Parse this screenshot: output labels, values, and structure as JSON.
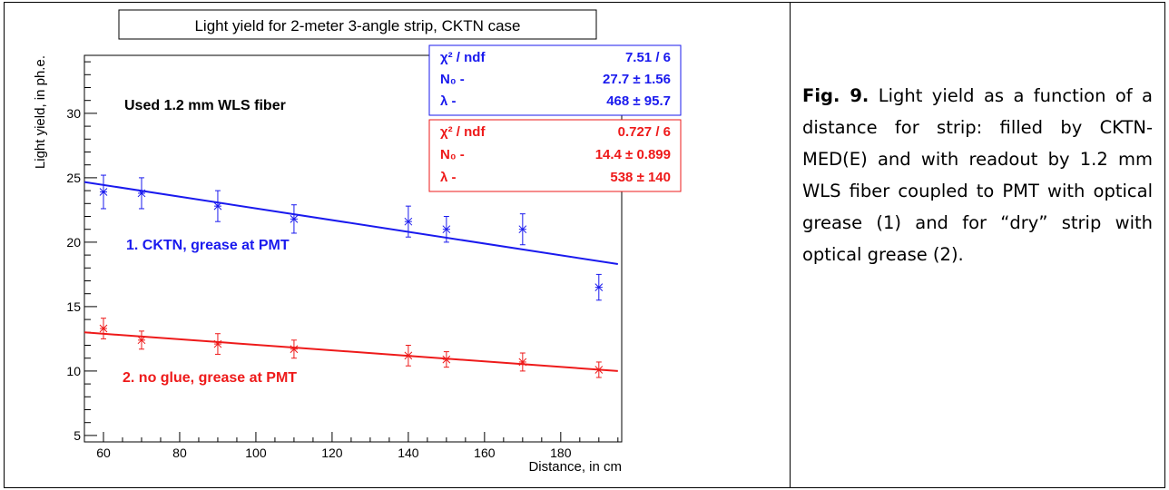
{
  "chart_data": {
    "type": "scatter",
    "title": "Light yield for 2-meter 3-angle strip, CKTN case",
    "xlabel": "Distance, in cm",
    "ylabel": "Light yield, in ph.e.",
    "xlim": [
      55,
      196
    ],
    "ylim": [
      4.5,
      34.5
    ],
    "xticks": [
      "60",
      "80",
      "100",
      "120",
      "140",
      "160",
      "180"
    ],
    "yticks": [
      "5",
      "10",
      "15",
      "20",
      "25",
      "30"
    ],
    "annotation": "Used 1.2 mm  WLS fiber",
    "series": [
      {
        "name": "1.  CKTN, grease at  PMT",
        "color": "#1a1aee",
        "points": [
          {
            "x": 60,
            "y": 23.9,
            "err": 1.3
          },
          {
            "x": 70,
            "y": 23.8,
            "err": 1.2
          },
          {
            "x": 90,
            "y": 22.8,
            "err": 1.2
          },
          {
            "x": 110,
            "y": 21.8,
            "err": 1.1
          },
          {
            "x": 140,
            "y": 21.6,
            "err": 1.2
          },
          {
            "x": 150,
            "y": 21.0,
            "err": 1.0
          },
          {
            "x": 170,
            "y": 21.0,
            "err": 1.2
          },
          {
            "x": 190,
            "y": 16.5,
            "err": 1.0
          }
        ],
        "fit": {
          "x": [
            55,
            195
          ],
          "y": [
            24.67,
            18.3
          ]
        },
        "stats": {
          "chi2_label": "χ² / ndf",
          "chi2_value": "7.51 / 6",
          "n0_label": "N₀ -",
          "n0_value": "27.7 ± 1.56",
          "lambda_label": "λ -",
          "lambda_value": "468 ± 95.7"
        }
      },
      {
        "name": "2. no glue, grease at  PMT",
        "color": "#ee1a1a",
        "points": [
          {
            "x": 60,
            "y": 13.3,
            "err": 0.8
          },
          {
            "x": 70,
            "y": 12.4,
            "err": 0.7
          },
          {
            "x": 90,
            "y": 12.1,
            "err": 0.8
          },
          {
            "x": 110,
            "y": 11.7,
            "err": 0.7
          },
          {
            "x": 140,
            "y": 11.2,
            "err": 0.8
          },
          {
            "x": 150,
            "y": 10.9,
            "err": 0.6
          },
          {
            "x": 170,
            "y": 10.7,
            "err": 0.7
          },
          {
            "x": 190,
            "y": 10.1,
            "err": 0.6
          }
        ],
        "fit": {
          "x": [
            55,
            195
          ],
          "y": [
            13.0,
            10.0
          ]
        },
        "stats": {
          "chi2_label": "χ² / ndf",
          "chi2_value": "0.727 / 6",
          "n0_label": "N₀ -",
          "n0_value": "14.4 ± 0.899",
          "lambda_label": "λ -",
          "lambda_value": "538 ± 140"
        }
      }
    ]
  },
  "caption": {
    "fig_label": "Fig. 9.",
    "text": "Light yield as a function of a distance for strip: filled by CKTN-MED(E) and with readout by 1.2 mm WLS fiber coupled to PMT with optical grease (1) and for “dry” strip with optical grease (2)."
  }
}
